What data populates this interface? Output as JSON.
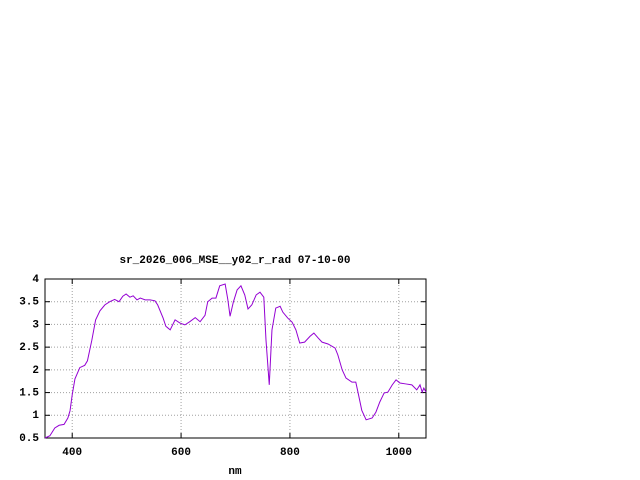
{
  "chart_data": {
    "type": "line",
    "title": "sr_2026_006_MSE__y02_r_rad 07-10-00",
    "x_label": "nm",
    "x": [
      350,
      359,
      368,
      376,
      385,
      392,
      396,
      400,
      405,
      414,
      423,
      428,
      436,
      443,
      451,
      460,
      469,
      478,
      486,
      493,
      499,
      506,
      512,
      519,
      525,
      534,
      543,
      552,
      557,
      567,
      572,
      576,
      580,
      589,
      598,
      607,
      616,
      626,
      635,
      644,
      649,
      657,
      664,
      671,
      681,
      686,
      690,
      696,
      703,
      710,
      717,
      723,
      730,
      738,
      745,
      752,
      756,
      762,
      767,
      774,
      782,
      787,
      796,
      804,
      811,
      818,
      827,
      837,
      844,
      852,
      859,
      870,
      883,
      888,
      896,
      903,
      914,
      921,
      925,
      932,
      940,
      951,
      958,
      965,
      973,
      980,
      988,
      995,
      1002,
      1013,
      1024,
      1033,
      1039,
      1043,
      1046,
      1050
    ],
    "series": [
      {
        "name": "sr_2026_006_MSE__y02_r_rad",
        "color": "#9400d3",
        "values": [
          0.5,
          0.55,
          0.72,
          0.78,
          0.8,
          0.94,
          1.1,
          1.45,
          1.8,
          2.05,
          2.1,
          2.2,
          2.65,
          3.1,
          3.3,
          3.43,
          3.5,
          3.55,
          3.5,
          3.62,
          3.67,
          3.6,
          3.63,
          3.54,
          3.58,
          3.54,
          3.54,
          3.52,
          3.43,
          3.14,
          2.96,
          2.92,
          2.88,
          3.1,
          3.03,
          2.99,
          3.06,
          3.15,
          3.06,
          3.2,
          3.5,
          3.58,
          3.58,
          3.85,
          3.89,
          3.54,
          3.18,
          3.49,
          3.76,
          3.85,
          3.65,
          3.34,
          3.43,
          3.65,
          3.71,
          3.6,
          2.66,
          1.67,
          2.88,
          3.36,
          3.4,
          3.27,
          3.14,
          3.05,
          2.88,
          2.59,
          2.61,
          2.74,
          2.81,
          2.7,
          2.61,
          2.57,
          2.48,
          2.33,
          2.0,
          1.82,
          1.73,
          1.73,
          1.51,
          1.11,
          0.9,
          0.94,
          1.07,
          1.29,
          1.49,
          1.51,
          1.67,
          1.78,
          1.71,
          1.69,
          1.67,
          1.56,
          1.67,
          1.51,
          1.6,
          1.51
        ]
      }
    ],
    "xlim": [
      350,
      1050
    ],
    "xticks": [
      400,
      600,
      800,
      1000
    ],
    "ylim": [
      0.5,
      4
    ],
    "yticks": [
      0.5,
      1,
      1.5,
      2,
      2.5,
      3,
      3.5,
      4
    ],
    "grid": true
  }
}
